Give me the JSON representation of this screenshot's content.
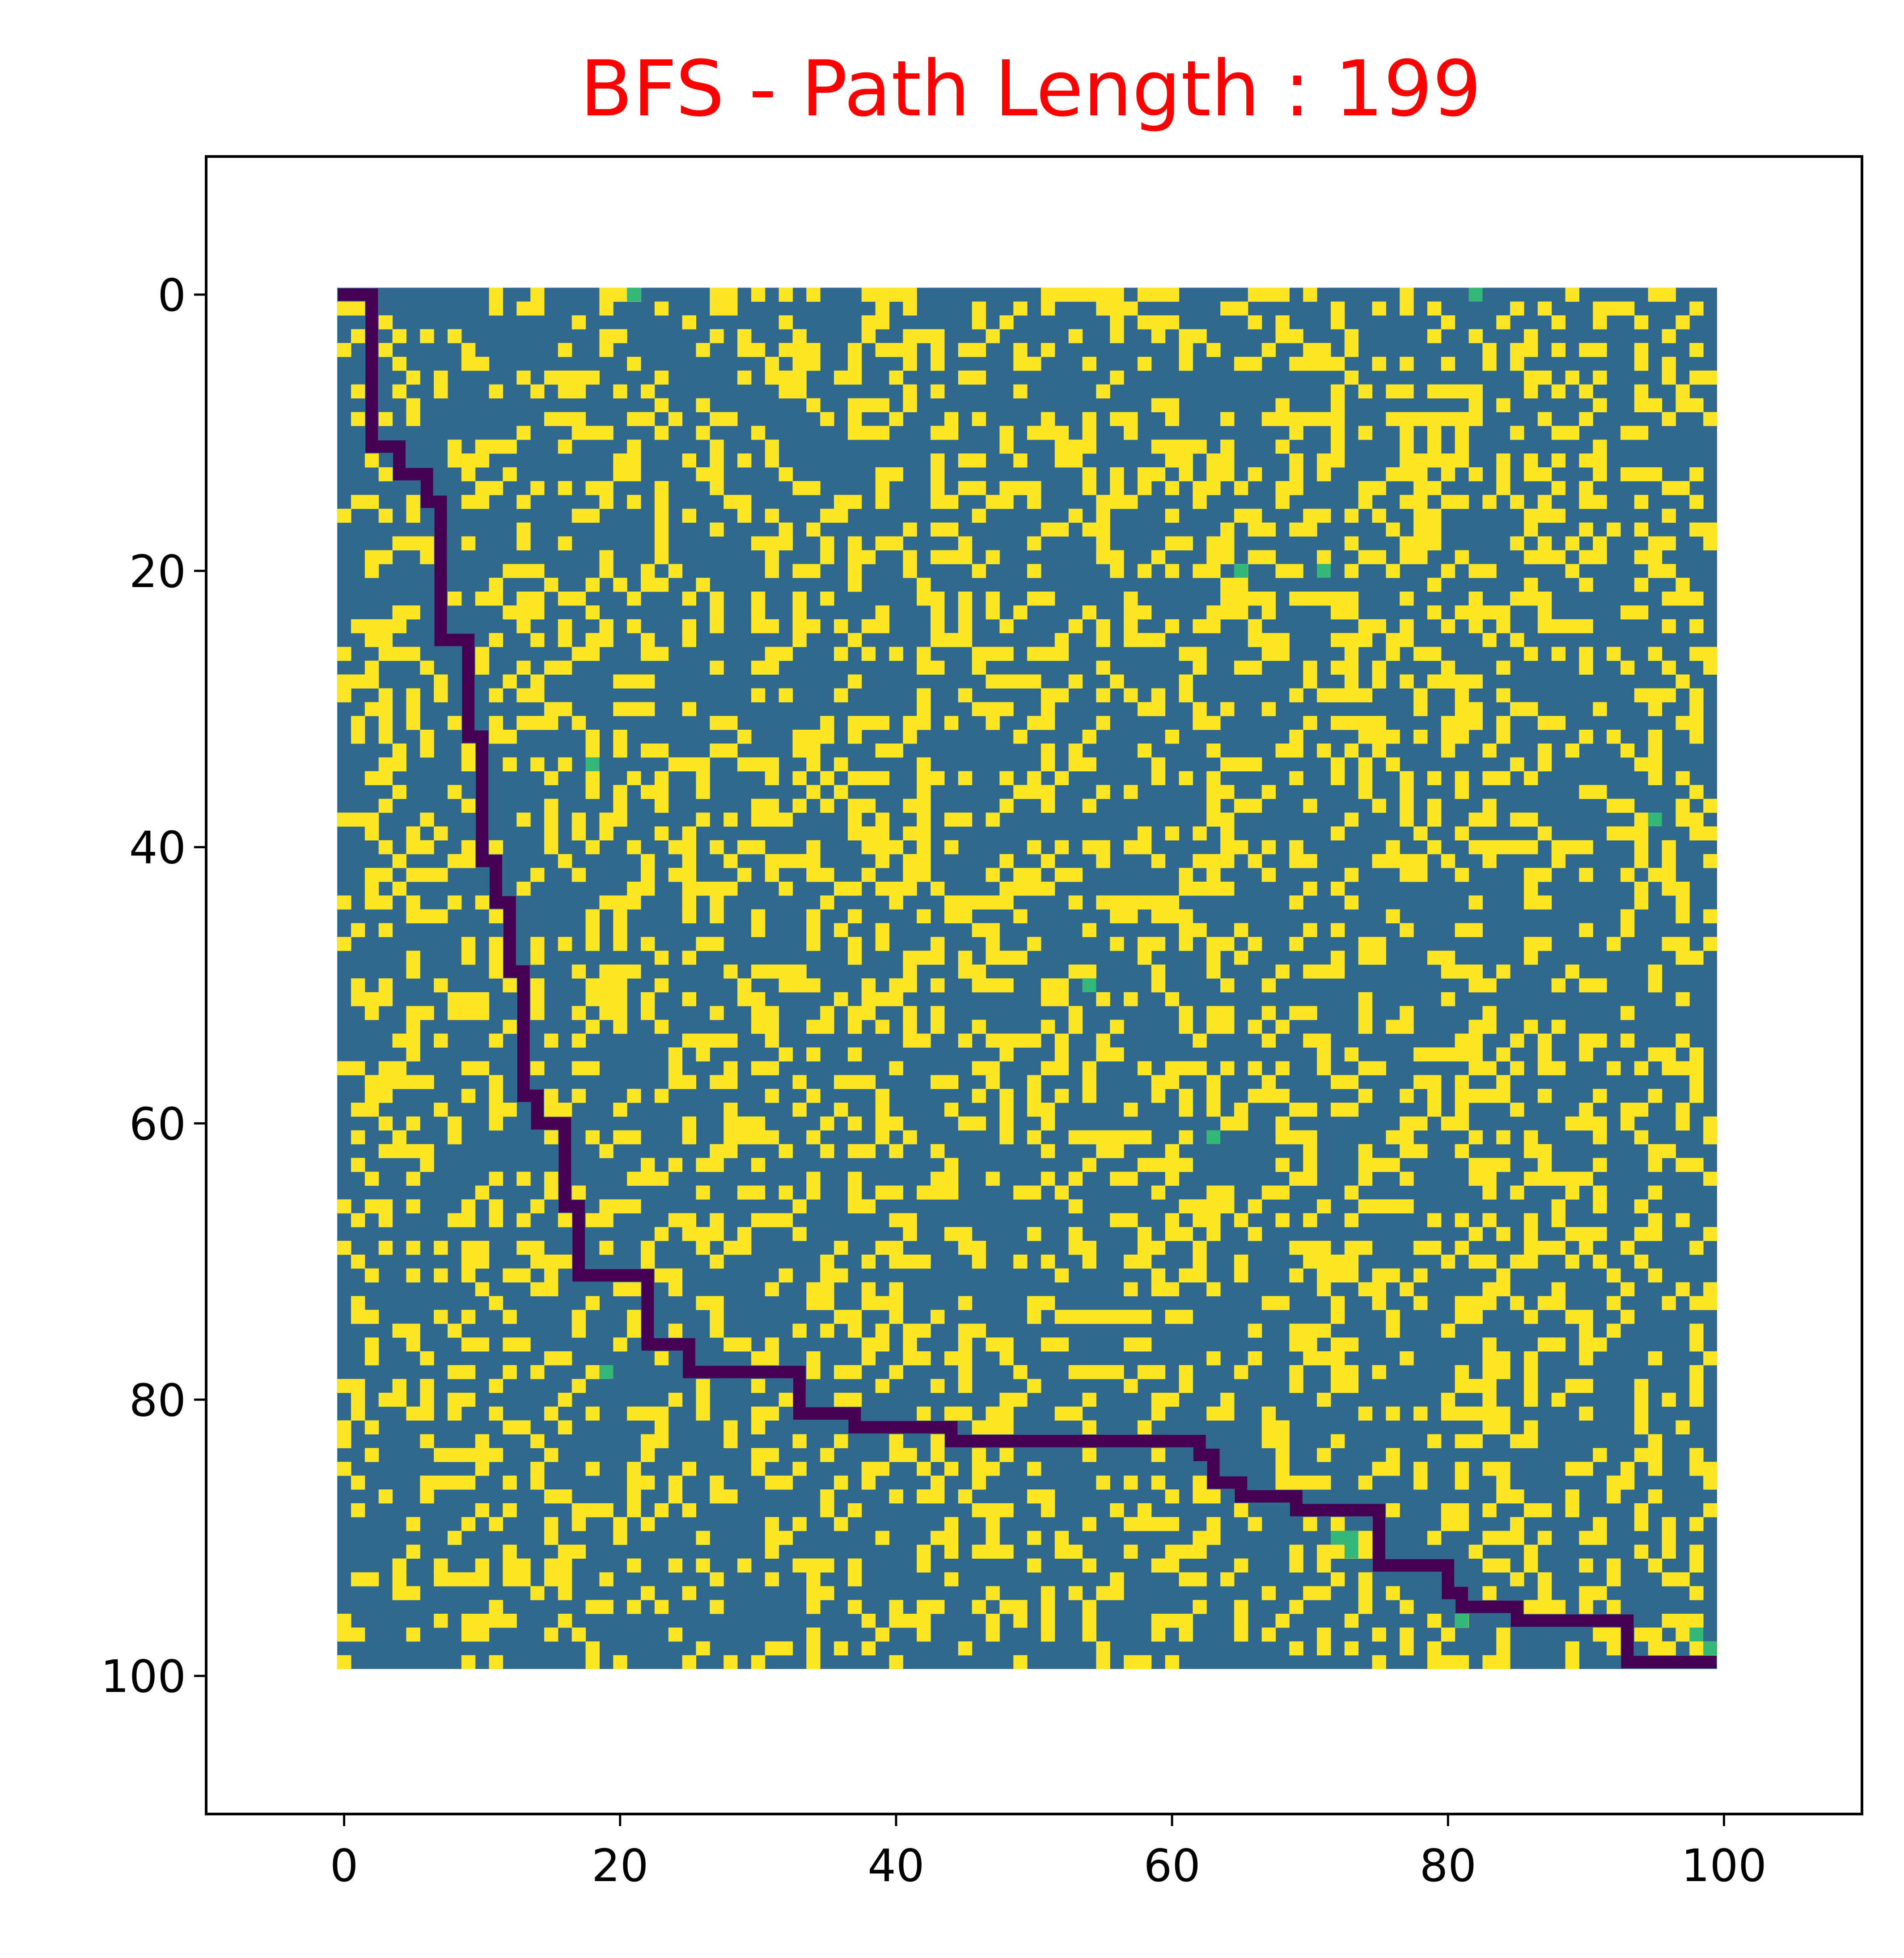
{
  "chart_data": {
    "type": "heatmap",
    "title": "BFS - Path Length : 199",
    "algorithm": "BFS",
    "path_length": 199,
    "grid_size": [
      100,
      100
    ],
    "xlim": [
      -10,
      110
    ],
    "ylim": [
      110,
      -10
    ],
    "y_axis_inverted": true,
    "xticks": [
      0,
      20,
      40,
      60,
      80,
      100
    ],
    "yticks": [
      0,
      20,
      40,
      60,
      80,
      100
    ],
    "xtick_labels": [
      "0",
      "20",
      "40",
      "60",
      "80",
      "100"
    ],
    "ytick_labels": [
      "0",
      "20",
      "40",
      "60",
      "80",
      "100"
    ],
    "xlabel": "",
    "ylabel": "",
    "grid": false,
    "colors": {
      "free": "#31688e",
      "obstacle": "#fde725",
      "visited": "#35b779",
      "path": "#440154",
      "title": "#ff0000"
    },
    "obstacle_density": 0.28,
    "random_seed": 1337,
    "highlight_cells": [
      [
        0,
        21
      ],
      [
        0,
        82
      ],
      [
        20,
        65
      ],
      [
        20,
        71
      ],
      [
        34,
        18
      ],
      [
        38,
        95
      ],
      [
        50,
        54
      ],
      [
        61,
        63
      ],
      [
        78,
        19
      ],
      [
        90,
        72
      ],
      [
        90,
        73
      ],
      [
        91,
        73
      ],
      [
        96,
        81
      ],
      [
        97,
        98
      ],
      [
        98,
        99
      ]
    ],
    "path_vertices": [
      [
        0,
        0
      ],
      [
        0,
        2
      ],
      [
        11,
        2
      ],
      [
        11,
        4
      ],
      [
        13,
        4
      ],
      [
        13,
        6
      ],
      [
        15,
        6
      ],
      [
        15,
        7
      ],
      [
        25,
        7
      ],
      [
        25,
        9
      ],
      [
        32,
        9
      ],
      [
        32,
        10
      ],
      [
        41,
        10
      ],
      [
        41,
        11
      ],
      [
        44,
        11
      ],
      [
        44,
        12
      ],
      [
        49,
        12
      ],
      [
        49,
        13
      ],
      [
        58,
        13
      ],
      [
        58,
        14
      ],
      [
        60,
        14
      ],
      [
        60,
        16
      ],
      [
        66,
        16
      ],
      [
        66,
        17
      ],
      [
        71,
        17
      ],
      [
        71,
        22
      ],
      [
        76,
        22
      ],
      [
        76,
        25
      ],
      [
        78,
        25
      ],
      [
        78,
        33
      ],
      [
        81,
        33
      ],
      [
        81,
        37
      ],
      [
        82,
        37
      ],
      [
        82,
        44
      ],
      [
        83,
        44
      ],
      [
        83,
        62
      ],
      [
        84,
        62
      ],
      [
        84,
        63
      ],
      [
        86,
        63
      ],
      [
        86,
        65
      ],
      [
        87,
        65
      ],
      [
        87,
        69
      ],
      [
        88,
        69
      ],
      [
        88,
        75
      ],
      [
        92,
        75
      ],
      [
        92,
        80
      ],
      [
        94,
        80
      ],
      [
        94,
        81
      ],
      [
        95,
        81
      ],
      [
        95,
        85
      ],
      [
        96,
        85
      ],
      [
        96,
        93
      ],
      [
        99,
        93
      ],
      [
        99,
        99
      ]
    ]
  }
}
